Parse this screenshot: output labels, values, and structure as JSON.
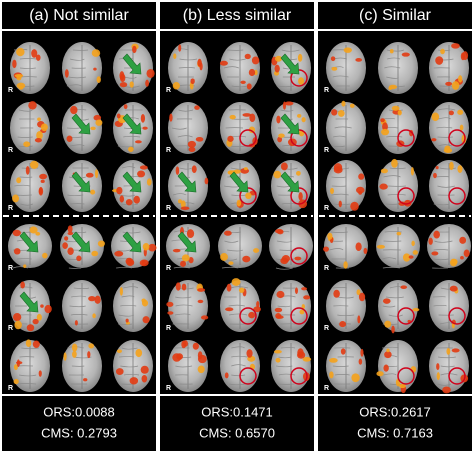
{
  "panels": [
    {
      "title": "(a) Not similar",
      "footer": [
        "ORS:0.0088",
        "CMS: 0.2793"
      ]
    },
    {
      "title": "(b) Less similar",
      "footer": [
        "ORS:0.1471",
        "CMS: 0.6570"
      ]
    },
    {
      "title": "(c) Similar",
      "footer": [
        "ORS:0.2617",
        "CMS: 0.7163"
      ]
    }
  ],
  "orientation_label": "R"
}
